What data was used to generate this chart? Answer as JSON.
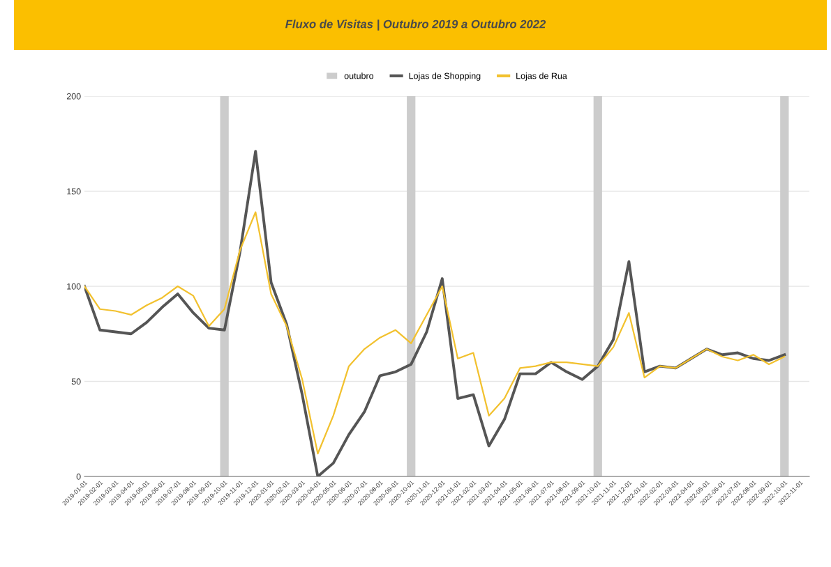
{
  "chart_data": {
    "type": "line",
    "title": "Fluxo de Visitas | Outubro 2019 a Outubro 2022",
    "categories": [
      "2019-01-01",
      "2019-02-01",
      "2019-03-01",
      "2019-04-01",
      "2019-05-01",
      "2019-06-01",
      "2019-07-01",
      "2019-08-01",
      "2019-09-01",
      "2019-10-01",
      "2019-11-01",
      "2019-12-01",
      "2020-01-01",
      "2020-02-01",
      "2020-03-01",
      "2020-04-01",
      "2020-05-01",
      "2020-06-01",
      "2020-07-01",
      "2020-08-01",
      "2020-09-01",
      "2020-10-01",
      "2020-11-01",
      "2020-12-01",
      "2021-01-01",
      "2021-02-01",
      "2021-03-01",
      "2021-04-01",
      "2021-05-01",
      "2021-06-01",
      "2021-07-01",
      "2021-08-01",
      "2021-09-01",
      "2021-10-01",
      "2021-11-01",
      "2021-12-01",
      "2022-01-01",
      "2022-02-01",
      "2022-03-01",
      "2022-04-01",
      "2022-05-01",
      "2022-06-01",
      "2022-07-01",
      "2022-08-01",
      "2022-09-01",
      "2022-10-01",
      "2022-11-01"
    ],
    "series": [
      {
        "name": "outubro",
        "type": "bar",
        "color": "#cccccc",
        "values": [
          null,
          null,
          null,
          null,
          null,
          null,
          null,
          null,
          null,
          200,
          null,
          null,
          null,
          null,
          null,
          null,
          null,
          null,
          null,
          null,
          null,
          200,
          null,
          null,
          null,
          null,
          null,
          null,
          null,
          null,
          null,
          null,
          null,
          200,
          null,
          null,
          null,
          null,
          null,
          null,
          null,
          null,
          null,
          null,
          null,
          200,
          null
        ]
      },
      {
        "name": "Lojas de Shopping",
        "color": "#555555",
        "values": [
          100,
          77,
          76,
          75,
          81,
          89,
          96,
          86,
          78,
          77,
          118,
          171,
          102,
          80,
          43,
          0,
          7,
          22,
          34,
          53,
          55,
          59,
          76,
          104,
          41,
          43,
          16,
          30,
          54,
          54,
          60,
          55,
          51,
          58,
          72,
          113,
          55,
          58,
          57,
          62,
          67,
          64,
          65,
          62,
          61,
          64,
          null
        ]
      },
      {
        "name": "Lojas de Rua",
        "color": "#f2c12e",
        "values": [
          100,
          88,
          87,
          85,
          90,
          94,
          100,
          95,
          79,
          88,
          119,
          139,
          96,
          79,
          51,
          12,
          32,
          58,
          67,
          73,
          77,
          70,
          85,
          100,
          62,
          65,
          32,
          41,
          57,
          58,
          60,
          60,
          59,
          58,
          68,
          86,
          52,
          58,
          57,
          62,
          67,
          63,
          61,
          64,
          59,
          63,
          null
        ]
      }
    ],
    "ylim": [
      0,
      200
    ],
    "yticks": [
      0,
      50,
      100,
      150,
      200
    ],
    "grid": "y",
    "legend": "top"
  }
}
